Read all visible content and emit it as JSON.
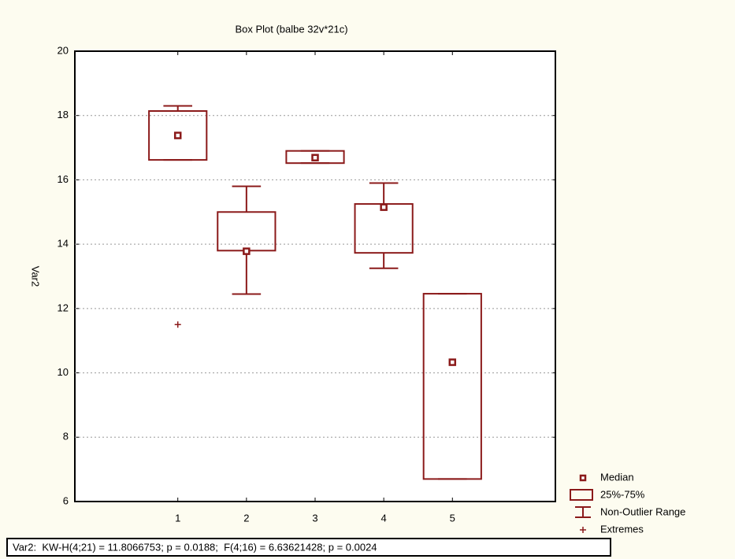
{
  "chart_data": {
    "type": "box",
    "title": "Box Plot (balbe 32v*21c)",
    "y_label": "Var2",
    "categories": [
      "1",
      "2",
      "3",
      "4",
      "5"
    ],
    "series": [
      {
        "color": "#8b1a1a",
        "median": [
          17.38,
          13.78,
          16.69,
          15.15,
          10.33
        ],
        "q1": [
          16.62,
          13.8,
          16.52,
          13.73,
          6.7
        ],
        "q3": [
          18.14,
          15.0,
          16.9,
          15.25,
          12.46
        ],
        "whisker_low": [
          16.62,
          12.45,
          16.52,
          13.25,
          6.7
        ],
        "whisker_high": [
          18.3,
          15.8,
          16.9,
          15.9,
          12.46
        ],
        "extremes": [
          [
            11.5
          ],
          [],
          [],
          [],
          []
        ]
      }
    ],
    "ylim": [
      6,
      20
    ],
    "yticks": [
      6,
      8,
      10,
      12,
      14,
      16,
      18,
      20
    ],
    "grid": true,
    "legend": [
      "Median",
      "25%-75%",
      "Non-Outlier Range",
      "Extremes"
    ],
    "stats": "Var2:  KW-H(4;21) = 11.8066753; p = 0.0188;  F(4;16) = 6.63621428; p = 0.0024"
  }
}
